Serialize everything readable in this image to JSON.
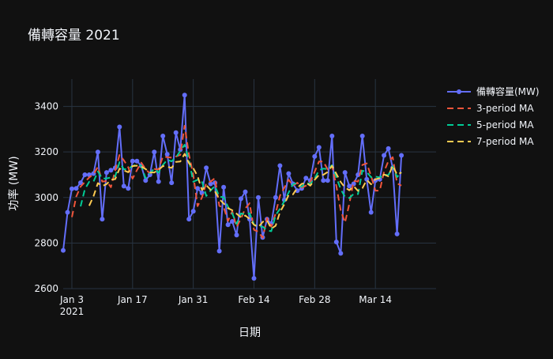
{
  "chart_data": {
    "type": "line",
    "title": "備轉容量 2021",
    "xlabel": "日期",
    "ylabel": "功率 (MW)",
    "ylim": [
      2600,
      3520
    ],
    "xlim": [
      "2021-01-01",
      "2021-03-28"
    ],
    "y_ticks": [
      2600,
      2800,
      3000,
      3200,
      3400
    ],
    "x_ticks": [
      {
        "date": "2021-01-03",
        "label": "Jan 3",
        "sublabel": "2021"
      },
      {
        "date": "2021-01-17",
        "label": "Jan 17",
        "sublabel": ""
      },
      {
        "date": "2021-01-31",
        "label": "Jan 31",
        "sublabel": ""
      },
      {
        "date": "2021-02-14",
        "label": "Feb 14",
        "sublabel": ""
      },
      {
        "date": "2021-02-28",
        "label": "Feb 28",
        "sublabel": ""
      },
      {
        "date": "2021-03-14",
        "label": "Mar 14",
        "sublabel": ""
      }
    ],
    "grid": true,
    "legend_position": "top-right",
    "x": [
      "2021-01-01",
      "2021-01-02",
      "2021-01-03",
      "2021-01-04",
      "2021-01-05",
      "2021-01-06",
      "2021-01-07",
      "2021-01-08",
      "2021-01-09",
      "2021-01-10",
      "2021-01-11",
      "2021-01-12",
      "2021-01-13",
      "2021-01-14",
      "2021-01-15",
      "2021-01-16",
      "2021-01-17",
      "2021-01-18",
      "2021-01-19",
      "2021-01-20",
      "2021-01-21",
      "2021-01-22",
      "2021-01-23",
      "2021-01-24",
      "2021-01-25",
      "2021-01-26",
      "2021-01-27",
      "2021-01-28",
      "2021-01-29",
      "2021-01-30",
      "2021-01-31",
      "2021-02-01",
      "2021-02-02",
      "2021-02-03",
      "2021-02-04",
      "2021-02-05",
      "2021-02-06",
      "2021-02-07",
      "2021-02-08",
      "2021-02-09",
      "2021-02-10",
      "2021-02-11",
      "2021-02-12",
      "2021-02-13",
      "2021-02-14",
      "2021-02-15",
      "2021-02-16",
      "2021-02-17",
      "2021-02-18",
      "2021-02-19",
      "2021-02-20",
      "2021-02-21",
      "2021-02-22",
      "2021-02-23",
      "2021-02-24",
      "2021-02-25",
      "2021-02-26",
      "2021-02-27",
      "2021-02-28",
      "2021-03-01",
      "2021-03-02",
      "2021-03-03",
      "2021-03-04",
      "2021-03-05",
      "2021-03-06",
      "2021-03-07",
      "2021-03-08",
      "2021-03-09",
      "2021-03-10",
      "2021-03-11",
      "2021-03-12",
      "2021-03-13",
      "2021-03-14",
      "2021-03-15",
      "2021-03-16",
      "2021-03-17",
      "2021-03-18",
      "2021-03-19",
      "2021-03-20",
      "2021-03-21",
      "2021-03-22"
    ],
    "series": [
      {
        "name": "備轉容量(MW)",
        "color": "#636efa",
        "dash": "solid",
        "markers": true,
        "values": [
          2768,
          2935,
          3038,
          3040,
          3065,
          3100,
          3100,
          3105,
          3200,
          2905,
          3110,
          3120,
          3130,
          3310,
          3050,
          3040,
          3160,
          3160,
          3140,
          3075,
          3100,
          3200,
          3070,
          3270,
          3190,
          3065,
          3285,
          3210,
          3450,
          2905,
          2940,
          3040,
          3020,
          3130,
          3060,
          3065,
          2765,
          3045,
          2880,
          2895,
          2835,
          2995,
          3025,
          2905,
          2645,
          3000,
          2825,
          2905,
          2885,
          3000,
          3140,
          2990,
          3105,
          3060,
          3030,
          3040,
          3085,
          3075,
          3180,
          3220,
          3075,
          3075,
          3270,
          2805,
          2755,
          3110,
          3050,
          3060,
          3100,
          3270,
          3080,
          2935,
          3075,
          3080,
          3185,
          3215,
          3130,
          2840,
          3185,
          null,
          null
        ]
      },
      {
        "name": "3-period MA",
        "color": "#ef553b",
        "dash": "dash",
        "markers": false,
        "values": [
          null,
          null,
          2914,
          3004,
          3048,
          3068,
          3088,
          3102,
          3135,
          3070,
          3072,
          3045,
          3120,
          3187,
          3163,
          3133,
          3083,
          3120,
          3153,
          3125,
          3105,
          3125,
          3123,
          3180,
          3177,
          3175,
          3180,
          3187,
          3315,
          3188,
          3098,
          2962,
          3000,
          3063,
          3070,
          3085,
          2963,
          2958,
          2897,
          2940,
          2870,
          2908,
          2952,
          2975,
          2858,
          2850,
          2823,
          2910,
          2872,
          2930,
          3008,
          3043,
          3078,
          3052,
          3065,
          3043,
          3052,
          3067,
          3113,
          3158,
          3158,
          3123,
          3140,
          3050,
          2943,
          2890,
          2972,
          3073,
          3070,
          3143,
          3150,
          3095,
          3030,
          3030,
          3113,
          3160,
          3177,
          3062,
          3052,
          null,
          null
        ]
      },
      {
        "name": "5-period MA",
        "color": "#00cc96",
        "dash": "dash",
        "markers": false,
        "values": [
          null,
          null,
          null,
          null,
          2961,
          3036,
          3069,
          3070,
          3114,
          3083,
          3084,
          3088,
          3093,
          3155,
          3124,
          3126,
          3138,
          3144,
          3140,
          3085,
          3107,
          3127,
          3109,
          3143,
          3166,
          3159,
          3176,
          3204,
          3232,
          3163,
          3069,
          3078,
          3071,
          3007,
          3031,
          3051,
          3004,
          3001,
          2959,
          2930,
          2884,
          2930,
          2926,
          2931,
          2881,
          2874,
          2872,
          2856,
          2852,
          2923,
          2950,
          2984,
          3022,
          3059,
          3063,
          3047,
          3064,
          3060,
          3083,
          3120,
          3127,
          3125,
          3142,
          3089,
          3036,
          3003,
          2998,
          3016,
          3015,
          3118,
          3112,
          3089,
          3092,
          3088,
          3101,
          3098,
          3137,
          3090,
          3111,
          null,
          null
        ]
      },
      {
        "name": "7-period MA",
        "color": "#fecb52",
        "dash": "dash",
        "markers": false,
        "values": [
          null,
          null,
          null,
          null,
          null,
          null,
          2964,
          3006,
          3063,
          3050,
          3059,
          3078,
          3081,
          3127,
          3119,
          3111,
          3138,
          3140,
          3136,
          3125,
          3110,
          3110,
          3121,
          3138,
          3135,
          3130,
          3156,
          3158,
          3192,
          3151,
          3128,
          3094,
          3033,
          3054,
          3034,
          3027,
          2993,
          2974,
          2953,
          2944,
          2929,
          2912,
          2921,
          2906,
          2880,
          2870,
          2893,
          2900,
          2863,
          2876,
          2936,
          2970,
          3011,
          3014,
          3043,
          3060,
          3065,
          3052,
          3078,
          3099,
          3100,
          3112,
          3139,
          3104,
          3068,
          3044,
          3032,
          3050,
          3029,
          3041,
          3077,
          3058,
          3080,
          3085,
          3101,
          3093,
          3141,
          3100,
          3110,
          null,
          null
        ]
      }
    ]
  },
  "legend": {
    "items": [
      "備轉容量(MW)",
      "3-period MA",
      "5-period MA",
      "7-period MA"
    ]
  }
}
